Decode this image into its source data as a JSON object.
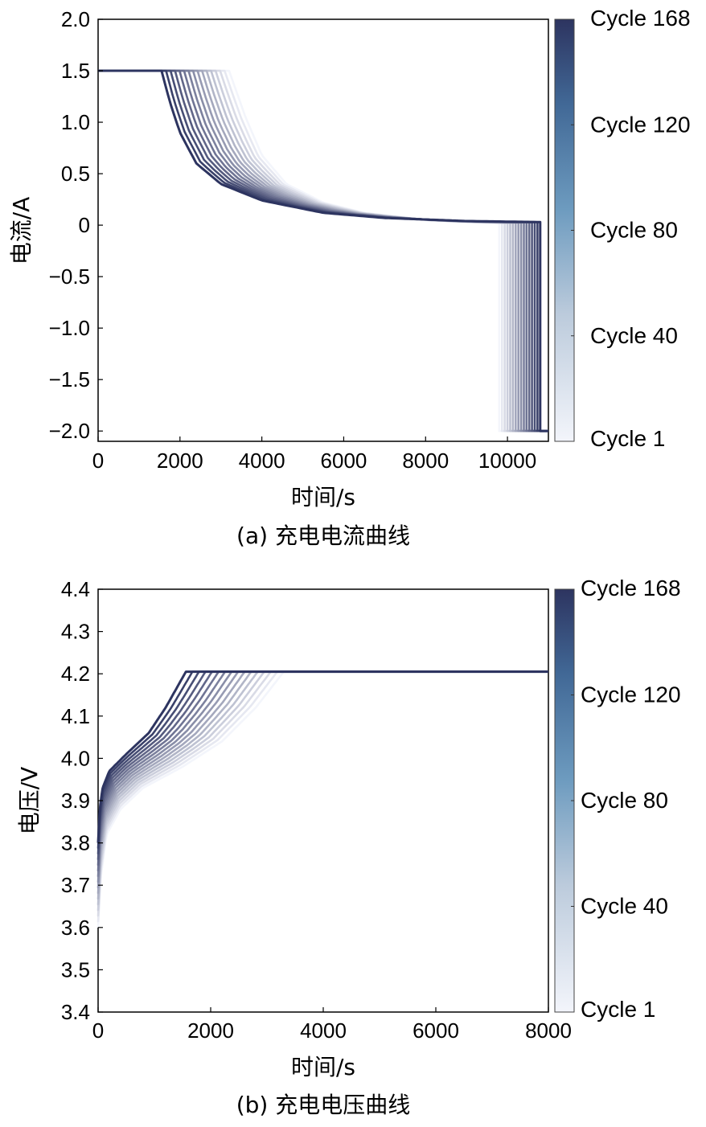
{
  "chart_data": [
    {
      "type": "line",
      "panel_caption": "(a) 充电电流曲线",
      "xlabel": "时间/s",
      "ylabel": "电流/A",
      "xlim": [
        0,
        11000
      ],
      "ylim": [
        -2.1,
        2.0
      ],
      "x_ticks": [
        0,
        2000,
        4000,
        6000,
        8000,
        10000
      ],
      "x_tick_labels": [
        "0",
        "2000",
        "4000",
        "6000",
        "8000",
        "10000"
      ],
      "y_ticks": [
        2.0,
        1.5,
        1.0,
        0.5,
        0,
        -0.5,
        -1.0,
        -1.5,
        -2.0
      ],
      "y_tick_labels": [
        "2.0",
        "1.5",
        "1.0",
        "0.5",
        "0",
        "−0.5",
        "−1.0",
        "−1.5",
        "−2.0"
      ],
      "colorbar_labels": [
        "Cycle 168",
        "Cycle 120",
        "Cycle 80",
        "Cycle 40",
        "Cycle 1"
      ],
      "colorbar_range": [
        1,
        168
      ],
      "colorbar_colors": [
        "#f3f5fb",
        "#2d3460"
      ],
      "series": [
        {
          "cycle": 1,
          "x": [
            0,
            3200,
            3600,
            4000,
            4600,
            5500,
            6500,
            8000,
            9000,
            9800,
            9800
          ],
          "y": [
            1.5,
            1.5,
            1.05,
            0.68,
            0.4,
            0.22,
            0.12,
            0.05,
            0.03,
            0.02,
            -2.0
          ]
        },
        {
          "cycle": 168,
          "x": [
            0,
            1550,
            1750,
            2000,
            2400,
            3000,
            4000,
            5500,
            7000,
            9000,
            10800,
            10800
          ],
          "y": [
            1.5,
            1.5,
            1.2,
            0.9,
            0.6,
            0.4,
            0.24,
            0.12,
            0.07,
            0.04,
            0.03,
            -2.0
          ]
        }
      ]
    },
    {
      "type": "line",
      "panel_caption": "(b) 充电电压曲线",
      "xlabel": "时间/s",
      "ylabel": "电压/V",
      "xlim": [
        0,
        8000
      ],
      "ylim": [
        3.4,
        4.4
      ],
      "x_ticks": [
        0,
        2000,
        4000,
        6000,
        8000
      ],
      "x_tick_labels": [
        "0",
        "2000",
        "4000",
        "6000",
        "8000"
      ],
      "y_ticks": [
        4.4,
        4.3,
        4.2,
        4.1,
        4.0,
        3.9,
        3.8,
        3.7,
        3.6,
        3.5,
        3.4
      ],
      "y_tick_labels": [
        "4.4",
        "4.3",
        "4.2",
        "4.1",
        "4.0",
        "3.9",
        "3.8",
        "3.7",
        "3.6",
        "3.5",
        "3.4"
      ],
      "colorbar_labels": [
        "Cycle 168",
        "Cycle 120",
        "Cycle 80",
        "Cycle 40",
        "Cycle 1"
      ],
      "colorbar_range": [
        1,
        168
      ],
      "colorbar_colors": [
        "#f3f5fb",
        "#2d3460"
      ],
      "series": [
        {
          "cycle": 1,
          "x": [
            0,
            50,
            150,
            400,
            800,
            1500,
            2200,
            2800,
            3300,
            8000
          ],
          "y": [
            3.6,
            3.72,
            3.82,
            3.88,
            3.93,
            3.98,
            4.04,
            4.12,
            4.205,
            4.205
          ]
        },
        {
          "cycle": 168,
          "x": [
            0,
            30,
            80,
            200,
            500,
            900,
            1200,
            1560,
            8000
          ],
          "y": [
            3.8,
            3.88,
            3.93,
            3.97,
            4.01,
            4.06,
            4.12,
            4.205,
            4.205
          ]
        }
      ]
    }
  ]
}
